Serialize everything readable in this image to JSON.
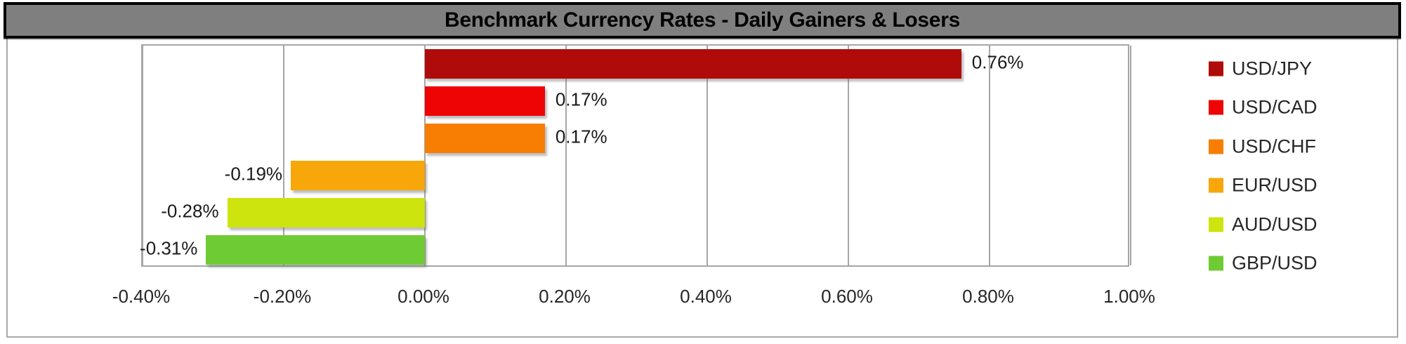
{
  "title": "Benchmark Currency Rates - Daily Gainers & Losers",
  "chart_data": {
    "type": "bar",
    "orientation": "horizontal",
    "title": "Benchmark Currency Rates - Daily Gainers & Losers",
    "series": [
      {
        "name": "USD/JPY",
        "value": 0.76,
        "data_label": "0.76%",
        "color": "#b00b0b"
      },
      {
        "name": "USD/CAD",
        "value": 0.17,
        "data_label": "0.17%",
        "color": "#ee0404"
      },
      {
        "name": "USD/CHF",
        "value": 0.17,
        "data_label": "0.17%",
        "color": "#f87e03"
      },
      {
        "name": "EUR/USD",
        "value": -0.19,
        "data_label": "-0.19%",
        "color": "#f7a709"
      },
      {
        "name": "AUD/USD",
        "value": -0.28,
        "data_label": "-0.28%",
        "color": "#cde40e"
      },
      {
        "name": "GBP/USD",
        "value": -0.31,
        "data_label": "-0.31%",
        "color": "#6fcb33"
      }
    ],
    "x_axis": {
      "min": -0.4,
      "max": 1.0,
      "step": 0.2,
      "tick_labels": [
        "-0.40%",
        "-0.20%",
        "0.00%",
        "0.20%",
        "0.40%",
        "0.60%",
        "0.80%",
        "1.00%"
      ]
    },
    "ylabel": "",
    "xlabel": "",
    "grid": true,
    "legend_position": "right"
  },
  "colors": {
    "title_bg": "#7f7f7f",
    "title_border": "#000000",
    "title_text": "#000000",
    "grid": "#a6a6a6",
    "plot_border": "#a6a6a6",
    "outer_border": "#a9a9a9",
    "label_text": "#1a1a1a"
  }
}
